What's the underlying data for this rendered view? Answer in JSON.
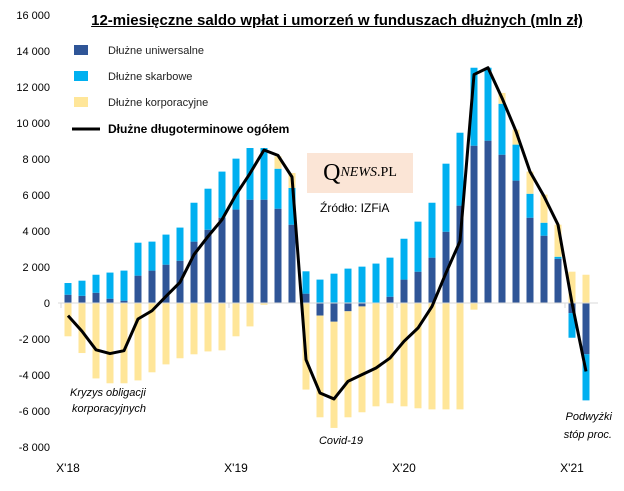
{
  "chart_data": {
    "type": "bar",
    "title": "12-miesięczne saldo wpłat i umorzeń w funduszach dłużnych (mln zł)",
    "ylim": [
      -8000,
      16000
    ],
    "yticks": [
      "16 000",
      "14 000",
      "12 000",
      "10 000",
      "8 000",
      "6 000",
      "4 000",
      "2 000",
      "0",
      "-2 000",
      "-4 000",
      "-6 000",
      "-8 000"
    ],
    "ytick_values": [
      16000,
      14000,
      12000,
      10000,
      8000,
      6000,
      4000,
      2000,
      0,
      -2000,
      -4000,
      -6000,
      -8000
    ],
    "xticks": [
      {
        "label": "X'18",
        "index": 0
      },
      {
        "label": "X'19",
        "index": 12
      },
      {
        "label": "X'20",
        "index": 24
      },
      {
        "label": "X'21",
        "index": 36
      }
    ],
    "legend_position": "top-left",
    "series": [
      {
        "name": "Dłużne uniwersalne",
        "type": "bar",
        "color": "#2F5597",
        "values": [
          460,
          400,
          570,
          240,
          130,
          1520,
          1800,
          2130,
          2350,
          3410,
          4070,
          4740,
          5190,
          5740,
          5740,
          5240,
          4350,
          520,
          -700,
          -1040,
          -460,
          -190,
          0,
          350,
          1300,
          1740,
          2520,
          3960,
          5410,
          8740,
          9020,
          8240,
          6800,
          4740,
          3740,
          2460,
          -560,
          -2850
        ]
      },
      {
        "name": "Dłużne skarbowe",
        "type": "bar",
        "color": "#00B0F0",
        "values": [
          650,
          840,
          1000,
          1450,
          1670,
          1830,
          1610,
          1670,
          1840,
          2160,
          2280,
          2560,
          2830,
          2870,
          2870,
          2220,
          2040,
          1240,
          1300,
          1630,
          1910,
          2020,
          2190,
          2170,
          2270,
          2780,
          3050,
          3780,
          4050,
          4330,
          4050,
          2830,
          2000,
          1330,
          720,
          110,
          -1370,
          -2560
        ]
      },
      {
        "name": "Dłużne korporacyjne",
        "type": "bar",
        "color": "#FFE699",
        "values": [
          -1850,
          -2780,
          -4190,
          -4460,
          -4460,
          -4300,
          -3850,
          -3410,
          -3070,
          -2850,
          -2690,
          -2630,
          -1850,
          -1300,
          -100,
          690,
          830,
          -4810,
          -5650,
          -5900,
          -5890,
          -5880,
          -5740,
          -5570,
          -5740,
          -5850,
          -5910,
          -5910,
          -5910,
          -370,
          0,
          600,
          830,
          1230,
          1560,
          1780,
          1740,
          1570
        ]
      },
      {
        "name": "Dłużne długoterminowe ogółem",
        "type": "line",
        "color": "#000000",
        "values": [
          -700,
          -1570,
          -2600,
          -2810,
          -2650,
          -890,
          -430,
          370,
          1150,
          2690,
          3700,
          4630,
          6020,
          7200,
          8500,
          8200,
          7000,
          -3150,
          -5000,
          -5330,
          -4350,
          -3980,
          -3610,
          -3060,
          -2130,
          -1390,
          -190,
          1670,
          3430,
          12690,
          13070,
          11390,
          9540,
          7300,
          5930,
          4350,
          0,
          -3800
        ]
      }
    ],
    "annotations": {
      "kryzys_1": "Kryzys obligacji",
      "kryzys_2": "korporacyjnych",
      "covid": "Covid-19",
      "podwyzki_1": "Podwyżki",
      "podwyzki_2": "stóp proc."
    }
  },
  "logo": {
    "q": "Q",
    "news": "NEWS",
    "pl": ".PL"
  },
  "source": "Źródło: IZFiA"
}
